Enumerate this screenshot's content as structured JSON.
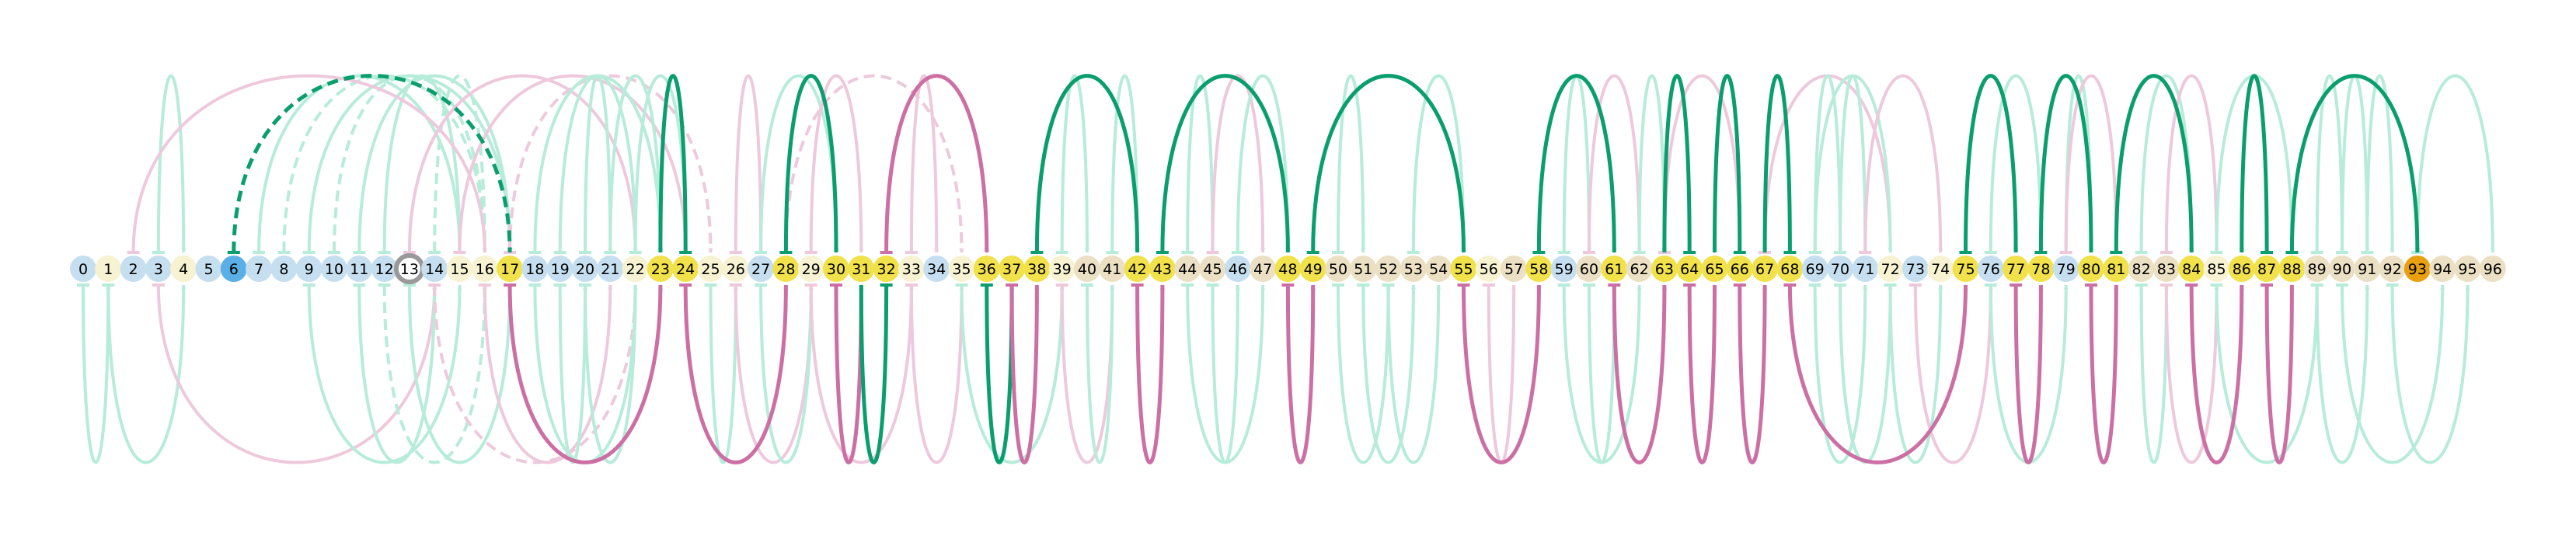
{
  "nodes": [
    {
      "label": "0",
      "color": "#c6dff0"
    },
    {
      "label": "1",
      "color": "#f6f2d2"
    },
    {
      "label": "2",
      "color": "#c6dff0"
    },
    {
      "label": "3",
      "color": "#c6dff0"
    },
    {
      "label": "4",
      "color": "#f6f2d2"
    },
    {
      "label": "5",
      "color": "#c6dff0"
    },
    {
      "label": "6",
      "color": "#5aafe6"
    },
    {
      "label": "7",
      "color": "#c6dff0"
    },
    {
      "label": "8",
      "color": "#c6dff0"
    },
    {
      "label": "9",
      "color": "#c6dff0"
    },
    {
      "label": "10",
      "color": "#c6dff0"
    },
    {
      "label": "11",
      "color": "#c6dff0"
    },
    {
      "label": "12",
      "color": "#c6dff0"
    },
    {
      "label": "13",
      "color": "#ece6d2",
      "ring": "#999999"
    },
    {
      "label": "14",
      "color": "#c6dff0"
    },
    {
      "label": "15",
      "color": "#f6f2d2"
    },
    {
      "label": "16",
      "color": "#f6f2d2"
    },
    {
      "label": "17",
      "color": "#f1e14a"
    },
    {
      "label": "18",
      "color": "#c6dff0"
    },
    {
      "label": "19",
      "color": "#c6dff0"
    },
    {
      "label": "20",
      "color": "#c6dff0"
    },
    {
      "label": "21",
      "color": "#c6dff0"
    },
    {
      "label": "22",
      "color": "#f6f2d2"
    },
    {
      "label": "23",
      "color": "#f1e14a"
    },
    {
      "label": "24",
      "color": "#f1e14a"
    },
    {
      "label": "25",
      "color": "#f6f2d2"
    },
    {
      "label": "26",
      "color": "#f6f2d2"
    },
    {
      "label": "27",
      "color": "#c6dff0"
    },
    {
      "label": "28",
      "color": "#f1e14a"
    },
    {
      "label": "29",
      "color": "#f6f2d2"
    },
    {
      "label": "30",
      "color": "#f1e14a"
    },
    {
      "label": "31",
      "color": "#f1e14a"
    },
    {
      "label": "32",
      "color": "#f1e14a"
    },
    {
      "label": "33",
      "color": "#f6f2d2"
    },
    {
      "label": "34",
      "color": "#c6dff0"
    },
    {
      "label": "35",
      "color": "#f6f2d2"
    },
    {
      "label": "36",
      "color": "#f1e14a"
    },
    {
      "label": "37",
      "color": "#f1e14a"
    },
    {
      "label": "38",
      "color": "#f1e14a"
    },
    {
      "label": "39",
      "color": "#f6f2d2"
    },
    {
      "label": "40",
      "color": "#ece0c4"
    },
    {
      "label": "41",
      "color": "#ece0c4"
    },
    {
      "label": "42",
      "color": "#f1e14a"
    },
    {
      "label": "43",
      "color": "#f1e14a"
    },
    {
      "label": "44",
      "color": "#ece0c4"
    },
    {
      "label": "45",
      "color": "#ece0c4"
    },
    {
      "label": "46",
      "color": "#c6dff0"
    },
    {
      "label": "47",
      "color": "#ece0c4"
    },
    {
      "label": "48",
      "color": "#f1e14a"
    },
    {
      "label": "49",
      "color": "#f1e14a"
    },
    {
      "label": "50",
      "color": "#ece0c4"
    },
    {
      "label": "51",
      "color": "#ece0c4"
    },
    {
      "label": "52",
      "color": "#ece0c4"
    },
    {
      "label": "53",
      "color": "#ece0c4"
    },
    {
      "label": "54",
      "color": "#ece0c4"
    },
    {
      "label": "55",
      "color": "#f1e14a"
    },
    {
      "label": "56",
      "color": "#f6f2d2"
    },
    {
      "label": "57",
      "color": "#ece0c4"
    },
    {
      "label": "58",
      "color": "#f1e14a"
    },
    {
      "label": "59",
      "color": "#c6dff0"
    },
    {
      "label": "60",
      "color": "#ece0c4"
    },
    {
      "label": "61",
      "color": "#f1e14a"
    },
    {
      "label": "62",
      "color": "#ece0c4"
    },
    {
      "label": "63",
      "color": "#f1e14a"
    },
    {
      "label": "64",
      "color": "#f1e14a"
    },
    {
      "label": "65",
      "color": "#f1e14a"
    },
    {
      "label": "66",
      "color": "#f1e14a"
    },
    {
      "label": "67",
      "color": "#f1e14a"
    },
    {
      "label": "68",
      "color": "#f1e14a"
    },
    {
      "label": "69",
      "color": "#c6dff0"
    },
    {
      "label": "70",
      "color": "#c6dff0"
    },
    {
      "label": "71",
      "color": "#c6dff0"
    },
    {
      "label": "72",
      "color": "#f6f2d2"
    },
    {
      "label": "73",
      "color": "#c6dff0"
    },
    {
      "label": "74",
      "color": "#f6f2d2"
    },
    {
      "label": "75",
      "color": "#f1e14a"
    },
    {
      "label": "76",
      "color": "#c6dff0"
    },
    {
      "label": "77",
      "color": "#f1e14a"
    },
    {
      "label": "78",
      "color": "#f1e14a"
    },
    {
      "label": "79",
      "color": "#c6dff0"
    },
    {
      "label": "80",
      "color": "#f1e14a"
    },
    {
      "label": "81",
      "color": "#f1e14a"
    },
    {
      "label": "82",
      "color": "#ece0c4"
    },
    {
      "label": "83",
      "color": "#ece0c4"
    },
    {
      "label": "84",
      "color": "#f1e14a"
    },
    {
      "label": "85",
      "color": "#f6f2d2"
    },
    {
      "label": "86",
      "color": "#f1e14a"
    },
    {
      "label": "87",
      "color": "#f1e14a"
    },
    {
      "label": "88",
      "color": "#f1e14a"
    },
    {
      "label": "89",
      "color": "#ece0c4"
    },
    {
      "label": "90",
      "color": "#ece0c4"
    },
    {
      "label": "91",
      "color": "#ece0c4"
    },
    {
      "label": "92",
      "color": "#ece0c4"
    },
    {
      "label": "93",
      "color": "#e8a010"
    },
    {
      "label": "94",
      "color": "#ece0c4"
    },
    {
      "label": "95",
      "color": "#ece0c4"
    },
    {
      "label": "96",
      "color": "#ece0c4"
    }
  ],
  "edge_colors": {
    "green": "#0a9e6e",
    "pink": "#cc6fa4",
    "faint_green": "#b6ecd9",
    "faint_pink": "#eec9dc"
  },
  "edges_strong": [
    {
      "from": 6,
      "to": 17,
      "side": "top",
      "color": "green",
      "dashed": true
    },
    {
      "from": 24,
      "to": 23,
      "side": "top",
      "color": "green"
    },
    {
      "from": 28,
      "to": 30,
      "side": "top",
      "color": "green"
    },
    {
      "from": 38,
      "to": 42,
      "side": "top",
      "color": "green"
    },
    {
      "from": 43,
      "to": 48,
      "side": "top",
      "color": "green"
    },
    {
      "from": 49,
      "to": 55,
      "side": "top",
      "color": "green"
    },
    {
      "from": 58,
      "to": 61,
      "side": "top",
      "color": "green"
    },
    {
      "from": 64,
      "to": 63,
      "side": "top",
      "color": "green"
    },
    {
      "from": 66,
      "to": 65,
      "side": "top",
      "color": "green"
    },
    {
      "from": 68,
      "to": 67,
      "side": "top",
      "color": "green"
    },
    {
      "from": 75,
      "to": 77,
      "side": "top",
      "color": "green"
    },
    {
      "from": 78,
      "to": 80,
      "side": "top",
      "color": "green"
    },
    {
      "from": 81,
      "to": 84,
      "side": "top",
      "color": "green"
    },
    {
      "from": 87,
      "to": 86,
      "side": "top",
      "color": "green"
    },
    {
      "from": 88,
      "to": 93,
      "side": "top",
      "color": "green"
    },
    {
      "from": 32,
      "to": 36,
      "side": "top",
      "color": "pink"
    },
    {
      "from": 17,
      "to": 23,
      "side": "bottom",
      "color": "pink"
    },
    {
      "from": 24,
      "to": 28,
      "side": "bottom",
      "color": "pink"
    },
    {
      "from": 30,
      "to": 31,
      "side": "bottom",
      "color": "pink"
    },
    {
      "from": 32,
      "to": 31,
      "side": "bottom",
      "color": "green"
    },
    {
      "from": 36,
      "to": 37,
      "side": "bottom",
      "color": "green"
    },
    {
      "from": 37,
      "to": 38,
      "side": "bottom",
      "color": "pink"
    },
    {
      "from": 42,
      "to": 43,
      "side": "bottom",
      "color": "pink"
    },
    {
      "from": 48,
      "to": 49,
      "side": "bottom",
      "color": "pink"
    },
    {
      "from": 55,
      "to": 58,
      "side": "bottom",
      "color": "pink"
    },
    {
      "from": 61,
      "to": 63,
      "side": "bottom",
      "color": "pink"
    },
    {
      "from": 64,
      "to": 65,
      "side": "bottom",
      "color": "pink"
    },
    {
      "from": 66,
      "to": 67,
      "side": "bottom",
      "color": "pink"
    },
    {
      "from": 68,
      "to": 75,
      "side": "bottom",
      "color": "pink"
    },
    {
      "from": 77,
      "to": 78,
      "side": "bottom",
      "color": "pink"
    },
    {
      "from": 80,
      "to": 81,
      "side": "bottom",
      "color": "pink"
    },
    {
      "from": 84,
      "to": 86,
      "side": "bottom",
      "color": "pink"
    },
    {
      "from": 87,
      "to": 88,
      "side": "bottom",
      "color": "pink"
    }
  ],
  "edges_faint": [
    {
      "from": 3,
      "to": 4,
      "side": "top",
      "color": "faint_green"
    },
    {
      "from": 7,
      "to": 15,
      "side": "top",
      "color": "faint_green"
    },
    {
      "from": 8,
      "to": 16,
      "side": "top",
      "color": "faint_green",
      "dashed": true
    },
    {
      "from": 9,
      "to": 17,
      "side": "top",
      "color": "faint_green"
    },
    {
      "from": 10,
      "to": 16,
      "side": "top",
      "color": "faint_green",
      "dashed": true
    },
    {
      "from": 11,
      "to": 17,
      "side": "top",
      "color": "faint_green"
    },
    {
      "from": 12,
      "to": 15,
      "side": "top",
      "color": "faint_green"
    },
    {
      "from": 14,
      "to": 16,
      "side": "top",
      "color": "faint_green",
      "dashed": true
    },
    {
      "from": 2,
      "to": 16,
      "side": "top",
      "color": "faint_pink"
    },
    {
      "from": 13,
      "to": 22,
      "side": "top",
      "color": "faint_pink"
    },
    {
      "from": 15,
      "to": 24,
      "side": "top",
      "color": "faint_pink"
    },
    {
      "from": 17,
      "to": 25,
      "side": "top",
      "color": "faint_pink",
      "dashed": true
    },
    {
      "from": 18,
      "to": 23,
      "side": "top",
      "color": "faint_green"
    },
    {
      "from": 19,
      "to": 22,
      "side": "top",
      "color": "faint_green"
    },
    {
      "from": 20,
      "to": 21,
      "side": "top",
      "color": "faint_green"
    },
    {
      "from": 21,
      "to": 23,
      "side": "top",
      "color": "faint_green"
    },
    {
      "from": 22,
      "to": 24,
      "side": "top",
      "color": "faint_green"
    },
    {
      "from": 26,
      "to": 27,
      "side": "top",
      "color": "faint_pink"
    },
    {
      "from": 27,
      "to": 30,
      "side": "top",
      "color": "faint_green"
    },
    {
      "from": 29,
      "to": 31,
      "side": "top",
      "color": "faint_pink"
    },
    {
      "from": 28,
      "to": 35,
      "side": "top",
      "color": "faint_pink",
      "dashed": true
    },
    {
      "from": 33,
      "to": 34,
      "side": "top",
      "color": "faint_pink"
    },
    {
      "from": 39,
      "to": 40,
      "side": "top",
      "color": "faint_green"
    },
    {
      "from": 41,
      "to": 42,
      "side": "top",
      "color": "faint_green"
    },
    {
      "from": 44,
      "to": 45,
      "side": "top",
      "color": "faint_green"
    },
    {
      "from": 45,
      "to": 47,
      "side": "top",
      "color": "faint_pink"
    },
    {
      "from": 46,
      "to": 48,
      "side": "top",
      "color": "faint_green"
    },
    {
      "from": 50,
      "to": 51,
      "side": "top",
      "color": "faint_green"
    },
    {
      "from": 53,
      "to": 55,
      "side": "top",
      "color": "faint_green"
    },
    {
      "from": 59,
      "to": 60,
      "side": "top",
      "color": "faint_green"
    },
    {
      "from": 60,
      "to": 62,
      "side": "top",
      "color": "faint_pink"
    },
    {
      "from": 62,
      "to": 63,
      "side": "top",
      "color": "faint_green"
    },
    {
      "from": 63,
      "to": 66,
      "side": "top",
      "color": "faint_pink"
    },
    {
      "from": 67,
      "to": 72,
      "side": "top",
      "color": "faint_pink"
    },
    {
      "from": 69,
      "to": 70,
      "side": "top",
      "color": "faint_green"
    },
    {
      "from": 69,
      "to": 72,
      "side": "top",
      "color": "faint_green"
    },
    {
      "from": 70,
      "to": 71,
      "side": "top",
      "color": "faint_green"
    },
    {
      "from": 71,
      "to": 74,
      "side": "top",
      "color": "faint_pink"
    },
    {
      "from": 76,
      "to": 78,
      "side": "top",
      "color": "faint_green"
    },
    {
      "from": 79,
      "to": 80,
      "side": "top",
      "color": "faint_green"
    },
    {
      "from": 79,
      "to": 81,
      "side": "top",
      "color": "faint_pink"
    },
    {
      "from": 82,
      "to": 84,
      "side": "top",
      "color": "faint_green"
    },
    {
      "from": 83,
      "to": 85,
      "side": "top",
      "color": "faint_pink"
    },
    {
      "from": 85,
      "to": 88,
      "side": "top",
      "color": "faint_green"
    },
    {
      "from": 89,
      "to": 90,
      "side": "top",
      "color": "faint_green"
    },
    {
      "from": 90,
      "to": 91,
      "side": "top",
      "color": "faint_green"
    },
    {
      "from": 91,
      "to": 92,
      "side": "top",
      "color": "faint_green"
    },
    {
      "from": 93,
      "to": 96,
      "side": "top",
      "color": "faint_green"
    },
    {
      "from": 0,
      "to": 1,
      "side": "bottom",
      "color": "faint_green"
    },
    {
      "from": 1,
      "to": 4,
      "side": "bottom",
      "color": "faint_green"
    },
    {
      "from": 3,
      "to": 14,
      "side": "bottom",
      "color": "faint_pink"
    },
    {
      "from": 9,
      "to": 15,
      "side": "bottom",
      "color": "faint_green"
    },
    {
      "from": 11,
      "to": 14,
      "side": "bottom",
      "color": "faint_green"
    },
    {
      "from": 12,
      "to": 16,
      "side": "bottom",
      "color": "faint_green",
      "dashed": true
    },
    {
      "from": 13,
      "to": 17,
      "side": "bottom",
      "color": "faint_green"
    },
    {
      "from": 14,
      "to": 22,
      "side": "bottom",
      "color": "faint_pink",
      "dashed": true
    },
    {
      "from": 16,
      "to": 21,
      "side": "bottom",
      "color": "faint_pink"
    },
    {
      "from": 18,
      "to": 22,
      "side": "bottom",
      "color": "faint_green"
    },
    {
      "from": 19,
      "to": 20,
      "side": "bottom",
      "color": "faint_green"
    },
    {
      "from": 20,
      "to": 22,
      "side": "bottom",
      "color": "faint_green"
    },
    {
      "from": 25,
      "to": 26,
      "side": "bottom",
      "color": "faint_green"
    },
    {
      "from": 26,
      "to": 29,
      "side": "bottom",
      "color": "faint_pink"
    },
    {
      "from": 27,
      "to": 29,
      "side": "bottom",
      "color": "faint_green"
    },
    {
      "from": 29,
      "to": 33,
      "side": "bottom",
      "color": "faint_pink"
    },
    {
      "from": 33,
      "to": 35,
      "side": "bottom",
      "color": "faint_pink"
    },
    {
      "from": 35,
      "to": 39,
      "side": "bottom",
      "color": "faint_green"
    },
    {
      "from": 39,
      "to": 41,
      "side": "bottom",
      "color": "faint_pink"
    },
    {
      "from": 40,
      "to": 41,
      "side": "bottom",
      "color": "faint_green"
    },
    {
      "from": 44,
      "to": 47,
      "side": "bottom",
      "color": "faint_green"
    },
    {
      "from": 45,
      "to": 46,
      "side": "bottom",
      "color": "faint_green"
    },
    {
      "from": 50,
      "to": 52,
      "side": "bottom",
      "color": "faint_green"
    },
    {
      "from": 51,
      "to": 53,
      "side": "bottom",
      "color": "faint_green"
    },
    {
      "from": 52,
      "to": 54,
      "side": "bottom",
      "color": "faint_green"
    },
    {
      "from": 56,
      "to": 57,
      "side": "bottom",
      "color": "faint_pink"
    },
    {
      "from": 59,
      "to": 62,
      "side": "bottom",
      "color": "faint_green"
    },
    {
      "from": 60,
      "to": 61,
      "side": "bottom",
      "color": "faint_green"
    },
    {
      "from": 69,
      "to": 71,
      "side": "bottom",
      "color": "faint_green"
    },
    {
      "from": 70,
      "to": 72,
      "side": "bottom",
      "color": "faint_green"
    },
    {
      "from": 72,
      "to": 74,
      "side": "bottom",
      "color": "faint_green"
    },
    {
      "from": 73,
      "to": 76,
      "side": "bottom",
      "color": "faint_pink"
    },
    {
      "from": 76,
      "to": 79,
      "side": "bottom",
      "color": "faint_green"
    },
    {
      "from": 82,
      "to": 83,
      "side": "bottom",
      "color": "faint_green"
    },
    {
      "from": 83,
      "to": 85,
      "side": "bottom",
      "color": "faint_pink"
    },
    {
      "from": 85,
      "to": 89,
      "side": "bottom",
      "color": "faint_green"
    },
    {
      "from": 89,
      "to": 91,
      "side": "bottom",
      "color": "faint_green"
    },
    {
      "from": 90,
      "to": 94,
      "side": "bottom",
      "color": "faint_green"
    },
    {
      "from": 92,
      "to": 95,
      "side": "bottom",
      "color": "faint_green"
    }
  ]
}
